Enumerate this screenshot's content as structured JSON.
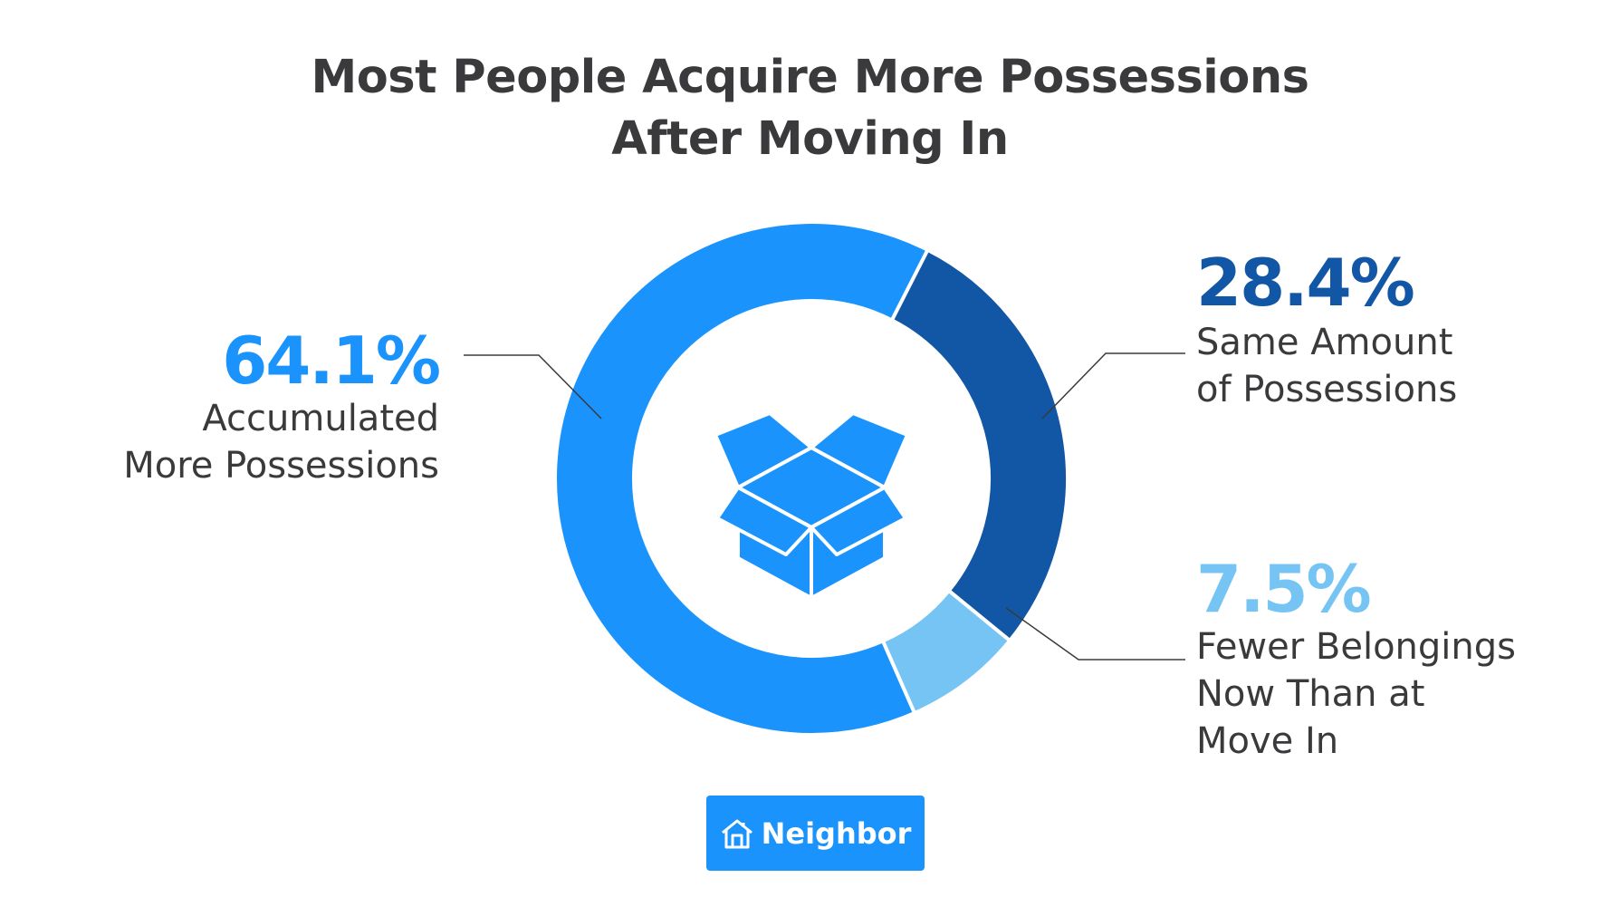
{
  "colors": {
    "accent": "#1a93fd",
    "dark": "#1256a6",
    "light": "#76c4f4",
    "text": "#3a3a3c",
    "brand_bg": "#1a93fd"
  },
  "chart_data": {
    "type": "pie",
    "title": [
      "Most People Acquire More Possessions",
      "After Moving In"
    ],
    "slices": [
      {
        "label_lines": [
          "Accumulated",
          "More Possessions"
        ],
        "value": 64.1,
        "value_label": "64.1%",
        "color": "#1a93fd"
      },
      {
        "label_lines": [
          "Same Amount",
          "of Possessions"
        ],
        "value": 28.4,
        "value_label": "28.4%",
        "color": "#1256a6"
      },
      {
        "label_lines": [
          "Fewer Belongings",
          "Now Than at",
          "Move In"
        ],
        "value": 7.5,
        "value_label": "7.5%",
        "color": "#76c4f4"
      }
    ],
    "donut": true,
    "center_icon": "open-box-icon"
  },
  "brand": {
    "label": "Neighbor",
    "icon": "house-icon"
  }
}
